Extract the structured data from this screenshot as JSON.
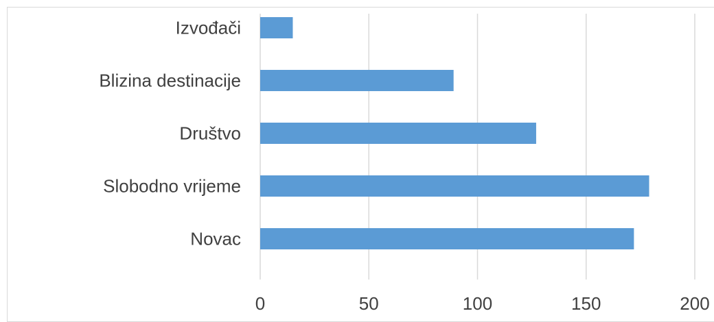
{
  "chart_data": {
    "type": "bar",
    "orientation": "horizontal",
    "categories": [
      "Izvođači",
      "Blizina destinacije",
      "Društvo",
      "Slobodno vrijeme",
      "Novac"
    ],
    "values": [
      15,
      89,
      127,
      179,
      172
    ],
    "xlim": [
      0,
      200
    ],
    "x_ticks": [
      0,
      50,
      100,
      150,
      200
    ],
    "grid": "vertical",
    "legend": "none",
    "title": "",
    "xlabel": "",
    "ylabel": "",
    "bar_color": "#5b9bd5",
    "grid_color": "#d9d9d9",
    "text_color": "#404040"
  }
}
